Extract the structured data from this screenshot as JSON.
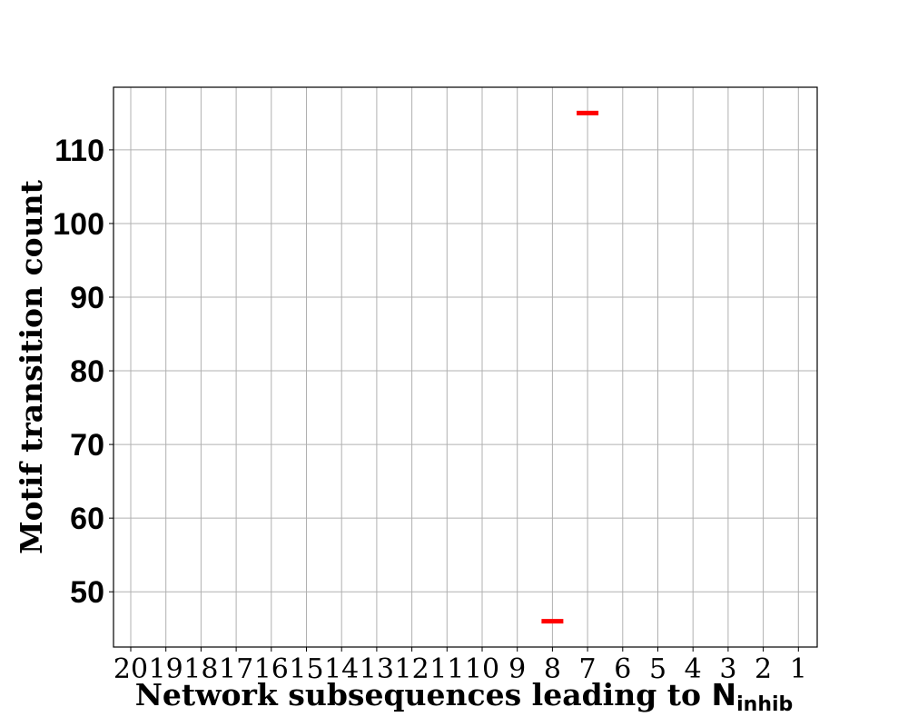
{
  "chart_data": {
    "type": "scatter",
    "marker": "hline",
    "marker_color": "#ff0000",
    "x_categories": [
      "20",
      "19",
      "18",
      "17",
      "16",
      "15",
      "14",
      "13",
      "12",
      "11",
      "10",
      "9",
      "8",
      "7",
      "6",
      "5",
      "4",
      "3",
      "2",
      "1"
    ],
    "y_ticks": [
      50,
      60,
      70,
      80,
      90,
      100,
      110
    ],
    "ylim": [
      42.5,
      118.5
    ],
    "grid": true,
    "xlabel": {
      "prefix": "Network subsequences leading to ",
      "symbol": "N",
      "subscript": "inhib"
    },
    "ylabel": "Motif transition count",
    "points": [
      {
        "x": "8",
        "y": 46
      },
      {
        "x": "7",
        "y": 115
      }
    ]
  }
}
